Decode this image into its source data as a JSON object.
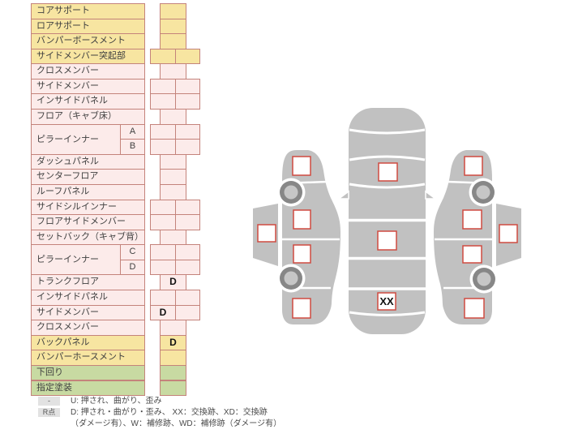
{
  "damage_table": {
    "rows": [
      {
        "label": "コアサポート",
        "color": "yellow",
        "cells": "single",
        "marks": [
          ""
        ]
      },
      {
        "label": "ロアサポート",
        "color": "yellow",
        "cells": "single",
        "marks": [
          ""
        ]
      },
      {
        "label": "バンパーボースメント",
        "color": "yellow",
        "cells": "single",
        "marks": [
          ""
        ]
      },
      {
        "label": "サイドメンバー突起部",
        "color": "yellow",
        "cells": "double",
        "marks": [
          "",
          ""
        ]
      },
      {
        "label": "クロスメンバー",
        "color": "pink",
        "cells": "single",
        "marks": [
          ""
        ]
      },
      {
        "label": "サイドメンバー",
        "color": "pink",
        "cells": "double",
        "marks": [
          "",
          ""
        ]
      },
      {
        "label": "インサイドパネル",
        "color": "pink",
        "cells": "double",
        "marks": [
          "",
          ""
        ]
      },
      {
        "label": "フロア（キャブ床）",
        "color": "pink",
        "cells": "single",
        "marks": [
          ""
        ]
      },
      {
        "label": "ピラーインナー",
        "sublabel": "A",
        "rowspan": 2,
        "color": "pink",
        "cells": "double",
        "marks": [
          "",
          ""
        ]
      },
      {
        "sublabel": "B",
        "color": "pink",
        "cells": "double",
        "marks": [
          "",
          ""
        ]
      },
      {
        "label": "ダッシュパネル",
        "color": "pink",
        "cells": "single",
        "marks": [
          ""
        ]
      },
      {
        "label": "センターフロア",
        "color": "pink",
        "cells": "single",
        "marks": [
          ""
        ]
      },
      {
        "label": "ルーフパネル",
        "color": "pink",
        "cells": "single",
        "marks": [
          ""
        ]
      },
      {
        "label": "サイドシルインナー",
        "color": "pink",
        "cells": "double",
        "marks": [
          "",
          ""
        ]
      },
      {
        "label": "フロアサイドメンバー",
        "color": "pink",
        "cells": "double",
        "marks": [
          "",
          ""
        ]
      },
      {
        "label": "セットバック（キャブ背）",
        "color": "pink",
        "cells": "single",
        "marks": [
          ""
        ]
      },
      {
        "label": "ピラーインナー",
        "sublabel": "C",
        "rowspan": 2,
        "color": "pink",
        "cells": "double",
        "marks": [
          "",
          ""
        ]
      },
      {
        "sublabel": "D",
        "color": "pink",
        "cells": "double",
        "marks": [
          "",
          ""
        ]
      },
      {
        "label": "トランクフロア",
        "color": "pink",
        "cells": "single",
        "marks": [
          "D"
        ]
      },
      {
        "label": "インサイドパネル",
        "color": "pink",
        "cells": "double",
        "marks": [
          "",
          ""
        ]
      },
      {
        "label": "サイドメンバー",
        "color": "pink",
        "cells": "double",
        "marks": [
          "D",
          ""
        ]
      },
      {
        "label": "クロスメンバー",
        "color": "pink",
        "cells": "single",
        "marks": [
          ""
        ]
      },
      {
        "label": "バックパネル",
        "color": "yellow",
        "cells": "single",
        "marks": [
          "D"
        ]
      },
      {
        "label": "バンパーホースメント",
        "color": "yellow",
        "cells": "single",
        "marks": [
          ""
        ]
      },
      {
        "label": "下回り",
        "color": "green",
        "cells": "single",
        "marks": [
          ""
        ]
      },
      {
        "label": "指定塗装",
        "color": "green",
        "cells": "single",
        "marks": [
          ""
        ]
      }
    ]
  },
  "diagram": {
    "boxes": [
      {
        "id": "left-front-fender",
        "value": ""
      },
      {
        "id": "left-rocker-outer",
        "value": ""
      },
      {
        "id": "left-front-door",
        "value": ""
      },
      {
        "id": "left-rear-door",
        "value": ""
      },
      {
        "id": "left-rear-fender",
        "value": ""
      },
      {
        "id": "top-cowl",
        "value": ""
      },
      {
        "id": "top-roof",
        "value": ""
      },
      {
        "id": "top-trunk",
        "value": "XX"
      },
      {
        "id": "right-front-fender",
        "value": ""
      },
      {
        "id": "right-front-door",
        "value": ""
      },
      {
        "id": "right-rocker-outer",
        "value": ""
      },
      {
        "id": "right-rear-door",
        "value": ""
      },
      {
        "id": "right-rear-fender",
        "value": ""
      }
    ]
  },
  "legend": {
    "rows": [
      {
        "badge": "-",
        "text": "U: 押され、曲がり、歪み"
      },
      {
        "badge": "R点",
        "text": "D: 押され・曲がり・歪み、 XX：交換跡、XD：交換跡",
        "text2": "（ダメージ有）、W：補修跡、WD：補修跡（ダメージ有）"
      }
    ]
  },
  "colors": {
    "row_yellow": "#f7e5a1",
    "row_pink": "#fcebea",
    "row_green": "#c8daa2",
    "cell_border": "#c4837b",
    "mark_box_border": "#cf4a41",
    "car_gray": "#c1c1c1",
    "wheel_dark": "#878787",
    "wheel_hub": "#c6c6c6",
    "legend_badge_bg": "#e2e2e2"
  }
}
